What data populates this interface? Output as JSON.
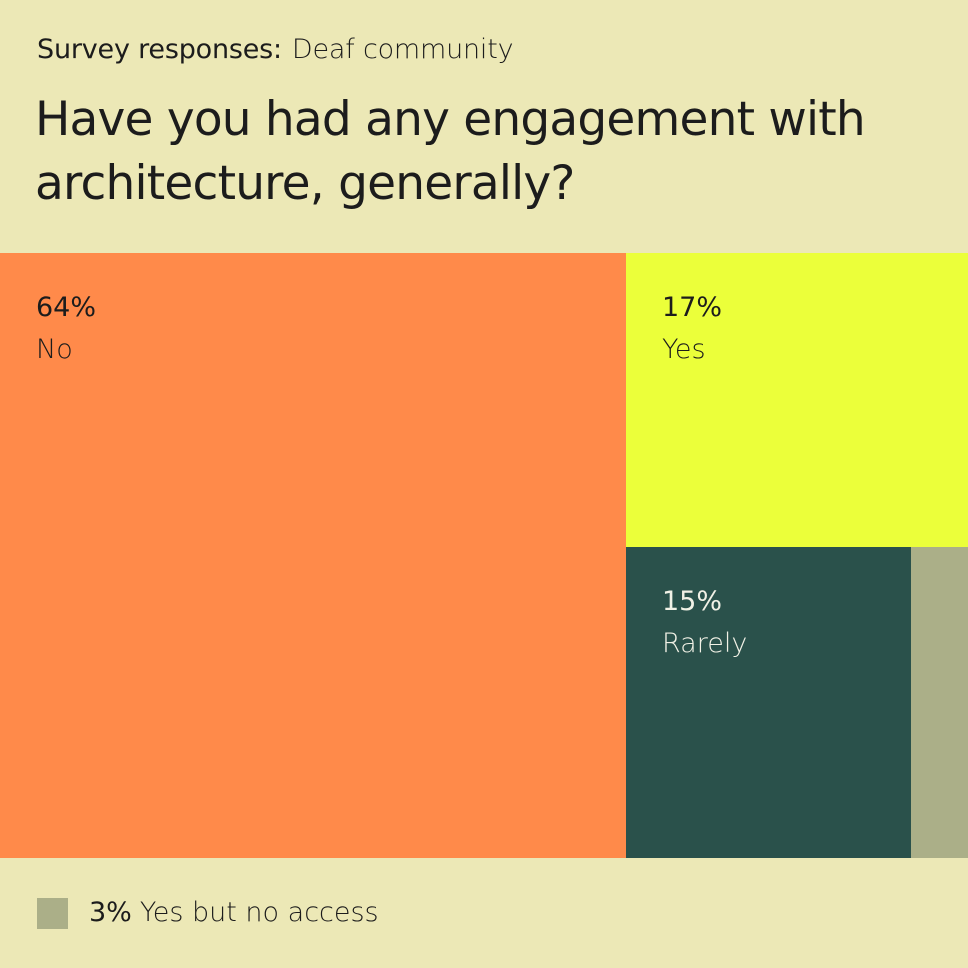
{
  "header": {
    "subtitle_prefix": "Survey responses:",
    "subtitle_group": "Deaf community",
    "title": "Have you had any engagement with architecture, generally?"
  },
  "chart_data": {
    "type": "treemap",
    "title": "Have you had any engagement with architecture, generally?",
    "subtitle": "Survey responses: Deaf community",
    "unit": "%",
    "items": [
      {
        "label": "No",
        "value": 64,
        "display": "64%",
        "color": "#FF8A4A",
        "text_color": "#1c1c1c"
      },
      {
        "label": "Yes",
        "value": 17,
        "display": "17%",
        "color": "#EBFF3A",
        "text_color": "#1c1c1c"
      },
      {
        "label": "Rarely",
        "value": 15,
        "display": "15%",
        "color": "#2A514B",
        "text_color": "#F1F1E6"
      },
      {
        "label": "Yes but no access",
        "value": 3,
        "display": "3%",
        "color": "#ABAF88",
        "text_color": "#1c1c1c"
      }
    ]
  },
  "legend": {
    "percent": "3%",
    "label": "Yes but no access"
  }
}
